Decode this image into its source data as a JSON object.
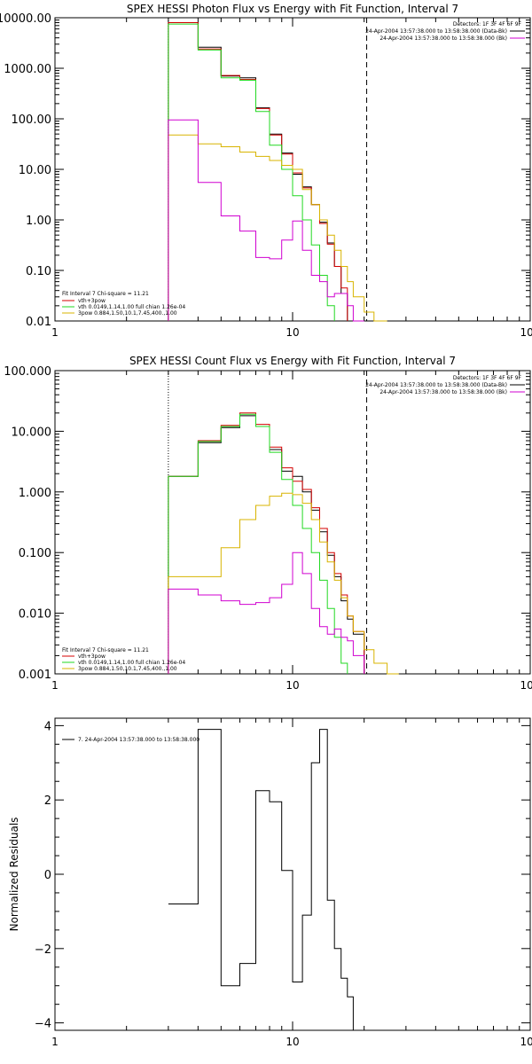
{
  "figure": {
    "panels": [
      {
        "key": "photon",
        "title": "SPEX HESSI Photon Flux vs Energy with Fit Function, Interval 7",
        "ylabel": "",
        "legend_left": {
          "heading": "Fit Interval  7    Chi-square = 11.21",
          "entries": [
            {
              "text": "vth+3pow",
              "color": "#d40000"
            },
            {
              "text": "vth 0.0149,1.14,1.00  full chian 1.26e-04",
              "color": "#22d822"
            },
            {
              "text": "3pow 0.884,1.50,10.1,7.45,400.,1.00",
              "color": "#d8b400"
            }
          ]
        },
        "legend_right": {
          "heading": "Detectors: 1F 3F 4F 6F 9F",
          "entries": [
            {
              "text": "24-Apr-2004 13:57:38.000 to 13:58:38.000 (Data-Bk)",
              "color": "#000000"
            },
            {
              "text": "24-Apr-2004 13:57:38.000 to 13:58:38.000 (Bk)",
              "color": "#d000d0"
            }
          ]
        }
      },
      {
        "key": "count",
        "title": "SPEX HESSI Count Flux vs Energy with Fit Function, Interval 7",
        "ylabel": "",
        "legend_left": {
          "heading": "Fit Interval  7    Chi-square = 11.21",
          "entries": [
            {
              "text": "vth+3pow",
              "color": "#d40000"
            },
            {
              "text": "vth 0.0149,1.14,1.00  full chian 1.26e-04",
              "color": "#22d822"
            },
            {
              "text": "3pow 0.884,1.50,10.1,7.45,400.,1.00",
              "color": "#d8b400"
            }
          ]
        },
        "legend_right": {
          "heading": "Detectors: 1F 3F 4F 6F 9F",
          "entries": [
            {
              "text": "24-Apr-2004 13:57:38.000 to 13:58:38.000 (Data-Bk)",
              "color": "#000000"
            },
            {
              "text": "24-Apr-2004 13:57:38.000 to 13:58:38.000 (Bk)",
              "color": "#d000d0"
            }
          ]
        }
      },
      {
        "key": "residuals",
        "title": "",
        "ylabel": "Normalized Residuals",
        "legend_left": {
          "heading": "",
          "entries": [
            {
              "text": "7. 24-Apr-2004 13:57:38.000 to 13:58:38.000",
              "color": "#000000"
            }
          ]
        },
        "legend_right": null
      }
    ]
  },
  "chart_data": [
    {
      "type": "line",
      "title": "SPEX HESSI Photon Flux vs Energy with Fit Function, Interval 7",
      "xscale": "log",
      "yscale": "log",
      "xlim": [
        1,
        100
      ],
      "ylim": [
        0.01,
        10000
      ],
      "x_ticks": [
        1,
        10,
        100
      ],
      "x_ticklabels": [
        "1",
        "10",
        "100"
      ],
      "y_ticks": [
        0.01,
        0.1,
        1,
        10,
        100,
        1000,
        10000
      ],
      "y_ticklabels": [
        "0.01",
        "0.10",
        "1.00",
        "10.00",
        "100.00",
        "1000.00",
        "10000.00"
      ],
      "vlines": [
        {
          "x": 3.0,
          "style": "dotted"
        },
        {
          "x": 20.5,
          "style": "dashed"
        }
      ],
      "bin_edges": [
        3,
        4,
        5,
        6,
        7,
        8,
        9,
        10,
        11,
        12,
        13,
        14,
        15,
        16,
        17,
        18,
        20,
        22,
        25
      ],
      "series": [
        {
          "name": "24-Apr-2004 13:57:38.000 to 13:58:38.000 (Data-Bk)",
          "color": "#000000",
          "style": "step",
          "values": [
            8000,
            2600,
            700,
            650,
            165,
            50,
            21,
            8,
            4.5,
            2.0,
            0.9,
            0.35,
            0.12,
            0.035,
            null,
            null,
            null,
            null
          ]
        },
        {
          "name": "vth+3pow",
          "color": "#d40000",
          "style": "step",
          "values": [
            8000,
            2400,
            720,
            600,
            160,
            48,
            20,
            8.5,
            4.3,
            2.0,
            0.85,
            0.33,
            0.12,
            0.045,
            null,
            null,
            null,
            null
          ]
        },
        {
          "name": "vth 0.0149,1.14,1.00  full chian 1.26e-04",
          "color": "#22d822",
          "style": "step",
          "values": [
            7500,
            2300,
            650,
            580,
            140,
            30,
            10,
            3.0,
            1.0,
            0.32,
            0.08,
            0.02,
            null,
            null,
            null,
            null,
            null,
            null
          ]
        },
        {
          "name": "3pow 0.884,1.50,10.1,7.45,400.,1.00",
          "color": "#d8b400",
          "style": "step",
          "values": [
            48,
            32,
            28,
            22,
            18,
            15,
            12,
            10,
            4.0,
            2.0,
            1.0,
            0.5,
            0.25,
            0.12,
            0.06,
            0.03,
            0.015,
            0.008
          ]
        },
        {
          "name": "24-Apr-2004 13:57:38.000 to 13:58:38.000 (Bk)",
          "color": "#d000d0",
          "style": "step",
          "values": [
            95,
            5.5,
            1.2,
            0.6,
            0.18,
            0.17,
            0.4,
            0.95,
            0.25,
            0.08,
            0.06,
            0.03,
            0.035,
            0.035,
            0.02,
            0.0095,
            null,
            null
          ]
        }
      ]
    },
    {
      "type": "line",
      "title": "SPEX HESSI Count Flux vs Energy with Fit Function, Interval 7",
      "xscale": "log",
      "yscale": "log",
      "xlim": [
        1,
        100
      ],
      "ylim": [
        0.001,
        100
      ],
      "x_ticks": [
        1,
        10,
        100
      ],
      "x_ticklabels": [
        "1",
        "10",
        "100"
      ],
      "y_ticks": [
        0.001,
        0.01,
        0.1,
        1,
        10,
        100
      ],
      "y_ticklabels": [
        "0.001",
        "0.010",
        "0.100",
        "1.000",
        "10.000",
        "100.000"
      ],
      "vlines": [
        {
          "x": 3.0,
          "style": "dotted"
        },
        {
          "x": 20.5,
          "style": "dashed"
        }
      ],
      "bin_edges": [
        3,
        4,
        5,
        6,
        7,
        8,
        9,
        10,
        11,
        12,
        13,
        14,
        15,
        16,
        17,
        18,
        20,
        22,
        25,
        28
      ],
      "series": [
        {
          "name": "24-Apr-2004 13:57:38.000 to 13:58:38.000 (Data-Bk)",
          "color": "#000000",
          "style": "step",
          "values": [
            1.8,
            6.5,
            11.5,
            18.0,
            12.0,
            5.0,
            2.2,
            1.8,
            1.0,
            0.5,
            0.22,
            0.09,
            0.04,
            0.016,
            0.008,
            0.0045,
            null,
            null,
            null
          ]
        },
        {
          "name": "vth+3pow",
          "color": "#d40000",
          "style": "step",
          "values": [
            1.8,
            7.0,
            12.5,
            20.0,
            13.0,
            5.5,
            2.5,
            1.5,
            1.1,
            0.55,
            0.25,
            0.1,
            0.045,
            0.02,
            0.009,
            0.005,
            null,
            null,
            null
          ]
        },
        {
          "name": "vth 0.0149,1.14,1.00  full chian 1.26e-04",
          "color": "#22d822",
          "style": "step",
          "values": [
            1.8,
            6.8,
            12.0,
            19.0,
            12.0,
            4.5,
            1.6,
            0.6,
            0.25,
            0.1,
            0.035,
            0.012,
            0.004,
            0.0015,
            null,
            null,
            null,
            null,
            null
          ]
        },
        {
          "name": "3pow 0.884,1.50,10.1,7.45,400.,1.00",
          "color": "#d8b400",
          "style": "step",
          "values": [
            0.04,
            0.04,
            0.12,
            0.35,
            0.6,
            0.85,
            0.95,
            0.9,
            0.65,
            0.35,
            0.15,
            0.07,
            0.035,
            0.018,
            0.009,
            0.005,
            0.0025,
            0.0015,
            0.001
          ]
        },
        {
          "name": "24-Apr-2004 13:57:38.000 to 13:58:38.000 (Bk)",
          "color": "#d000d0",
          "style": "step",
          "values": [
            0.025,
            0.02,
            0.016,
            0.014,
            0.015,
            0.018,
            0.03,
            0.1,
            0.045,
            0.012,
            0.006,
            0.0045,
            0.0055,
            0.004,
            0.0035,
            0.002,
            null,
            null,
            null
          ]
        }
      ]
    },
    {
      "type": "line",
      "title": "",
      "xscale": "log",
      "yscale": "linear",
      "xlim": [
        1,
        100
      ],
      "ylim": [
        -4.2,
        4.2
      ],
      "ylabel": "Normalized Residuals",
      "x_ticks": [
        1,
        10,
        100
      ],
      "x_ticklabels": [
        "1",
        "10",
        "100"
      ],
      "y_ticks": [
        -4,
        -2,
        0,
        2,
        4
      ],
      "y_ticklabels": [
        "−4",
        "−2",
        "0",
        "2",
        "4"
      ],
      "vlines": [],
      "bin_edges": [
        3,
        4,
        5,
        6,
        7,
        8,
        9,
        10,
        11,
        12,
        13,
        14,
        15,
        16,
        17,
        18,
        20
      ],
      "series": [
        {
          "name": "7. 24-Apr-2004 13:57:38.000 to 13:58:38.000",
          "color": "#000000",
          "style": "step",
          "values": [
            -0.8,
            3.9,
            -3.0,
            -2.4,
            2.25,
            1.95,
            0.1,
            -2.9,
            -1.1,
            3.0,
            3.9,
            -0.7,
            -2.0,
            -2.8,
            -3.3,
            -4.2
          ]
        }
      ]
    }
  ]
}
